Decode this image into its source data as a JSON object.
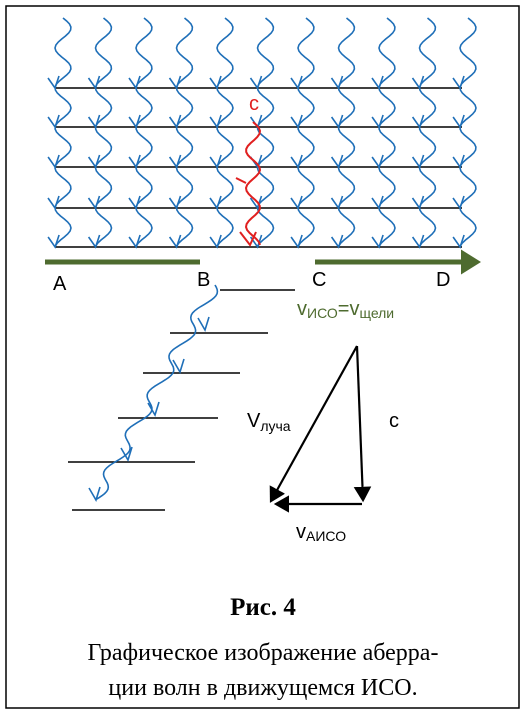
{
  "labels": {
    "a": "A",
    "b": "B",
    "c_point": "C",
    "d": "D",
    "c_red": "c",
    "v_frame": {
      "v1": "v",
      "sub1": "ИСО",
      "eq": "=",
      "v2": "v",
      "sub2": "щели"
    },
    "v_ray": {
      "v": "V",
      "sub": "луча"
    },
    "c_light": "c",
    "v_aberr": {
      "v": "v",
      "sub": "АИСО"
    }
  },
  "figure": {
    "number": "Рис. 4",
    "caption": [
      "Графическое изображение аберра-",
      "ции волн в движущемся ИСО."
    ]
  }
}
